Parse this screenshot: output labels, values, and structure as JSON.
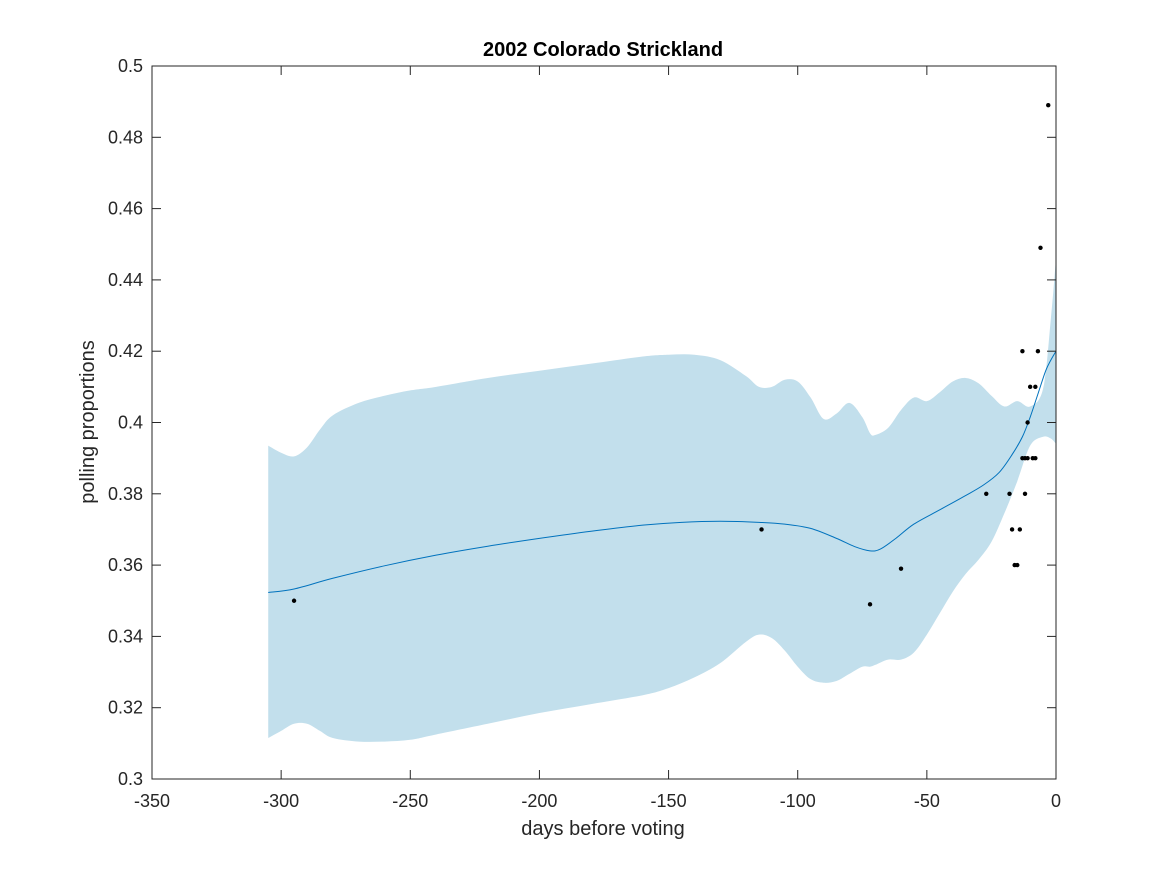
{
  "chart_data": {
    "type": "line",
    "title": "2002 Colorado Strickland",
    "xlabel": "days before voting",
    "ylabel": "polling proportions",
    "xlim": [
      -350,
      0
    ],
    "ylim": [
      0.3,
      0.5
    ],
    "xticks": [
      -350,
      -300,
      -250,
      -200,
      -150,
      -100,
      -50,
      0
    ],
    "xtick_labels": [
      "-350",
      "-300",
      "-250",
      "-200",
      "-150",
      "-100",
      "-50",
      "0"
    ],
    "yticks": [
      0.3,
      0.32,
      0.34,
      0.36,
      0.38,
      0.4,
      0.42,
      0.44,
      0.46,
      0.48,
      0.5
    ],
    "ytick_labels": [
      "0.3",
      "0.32",
      "0.34",
      "0.36",
      "0.38",
      "0.4",
      "0.42",
      "0.44",
      "0.46",
      "0.48",
      "0.5"
    ],
    "grid": false,
    "series": [
      {
        "kind": "band",
        "color": "#c2dfec",
        "x": [
          -305,
          -300,
          -295,
          -290,
          -285,
          -280,
          -270,
          -260,
          -250,
          -240,
          -220,
          -200,
          -180,
          -160,
          -150,
          -140,
          -130,
          -120,
          -115,
          -110,
          -105,
          -100,
          -95,
          -90,
          -85,
          -80,
          -75,
          -72,
          -70,
          -65,
          -60,
          -55,
          -50,
          -45,
          -40,
          -35,
          -30,
          -25,
          -20,
          -15,
          -10,
          -5,
          -2,
          0
        ],
        "upper": [
          0.3935,
          0.3915,
          0.3905,
          0.393,
          0.398,
          0.402,
          0.4055,
          0.4075,
          0.409,
          0.41,
          0.4125,
          0.4145,
          0.4165,
          0.4185,
          0.419,
          0.419,
          0.4175,
          0.413,
          0.41,
          0.41,
          0.412,
          0.4115,
          0.407,
          0.401,
          0.4025,
          0.4055,
          0.4015,
          0.397,
          0.3965,
          0.3985,
          0.4035,
          0.407,
          0.406,
          0.4085,
          0.4115,
          0.4125,
          0.411,
          0.4075,
          0.4045,
          0.406,
          0.4045,
          0.4095,
          0.429,
          0.446
        ],
        "lower": [
          0.3115,
          0.3135,
          0.3155,
          0.3155,
          0.3135,
          0.3115,
          0.3105,
          0.3105,
          0.311,
          0.3125,
          0.3155,
          0.3185,
          0.321,
          0.3235,
          0.3255,
          0.3285,
          0.3325,
          0.3385,
          0.3405,
          0.3395,
          0.336,
          0.3315,
          0.328,
          0.327,
          0.3275,
          0.3295,
          0.3315,
          0.3315,
          0.332,
          0.3335,
          0.3335,
          0.3355,
          0.3405,
          0.3465,
          0.3525,
          0.3575,
          0.3615,
          0.3665,
          0.3745,
          0.3835,
          0.3935,
          0.396,
          0.3955,
          0.394
        ]
      },
      {
        "kind": "line",
        "color": "#0072bd",
        "x": [
          -305,
          -295,
          -280,
          -260,
          -240,
          -220,
          -200,
          -180,
          -160,
          -145,
          -130,
          -115,
          -105,
          -95,
          -85,
          -78,
          -72,
          -68,
          -62,
          -55,
          -45,
          -35,
          -28,
          -22,
          -17,
          -13,
          -10,
          -7,
          -4,
          -2,
          0
        ],
        "y": [
          0.3523,
          0.3533,
          0.3563,
          0.3598,
          0.3628,
          0.3653,
          0.3675,
          0.3695,
          0.3712,
          0.372,
          0.3723,
          0.372,
          0.3715,
          0.3703,
          0.3675,
          0.3652,
          0.364,
          0.3645,
          0.3675,
          0.3715,
          0.3755,
          0.3795,
          0.3825,
          0.386,
          0.391,
          0.396,
          0.4015,
          0.408,
          0.4145,
          0.4175,
          0.42
        ]
      },
      {
        "kind": "scatter",
        "color": "#000000",
        "x": [
          -295,
          -114,
          -72,
          -60,
          -27,
          -18,
          -17,
          -16,
          -15,
          -14,
          -13,
          -13,
          -12,
          -12,
          -11,
          -11,
          -10,
          -9,
          -8,
          -8,
          -7,
          -6,
          -3
        ],
        "y": [
          0.35,
          0.37,
          0.349,
          0.359,
          0.38,
          0.38,
          0.37,
          0.36,
          0.36,
          0.37,
          0.39,
          0.42,
          0.38,
          0.39,
          0.4,
          0.39,
          0.41,
          0.39,
          0.39,
          0.41,
          0.42,
          0.449,
          0.489
        ]
      }
    ]
  }
}
